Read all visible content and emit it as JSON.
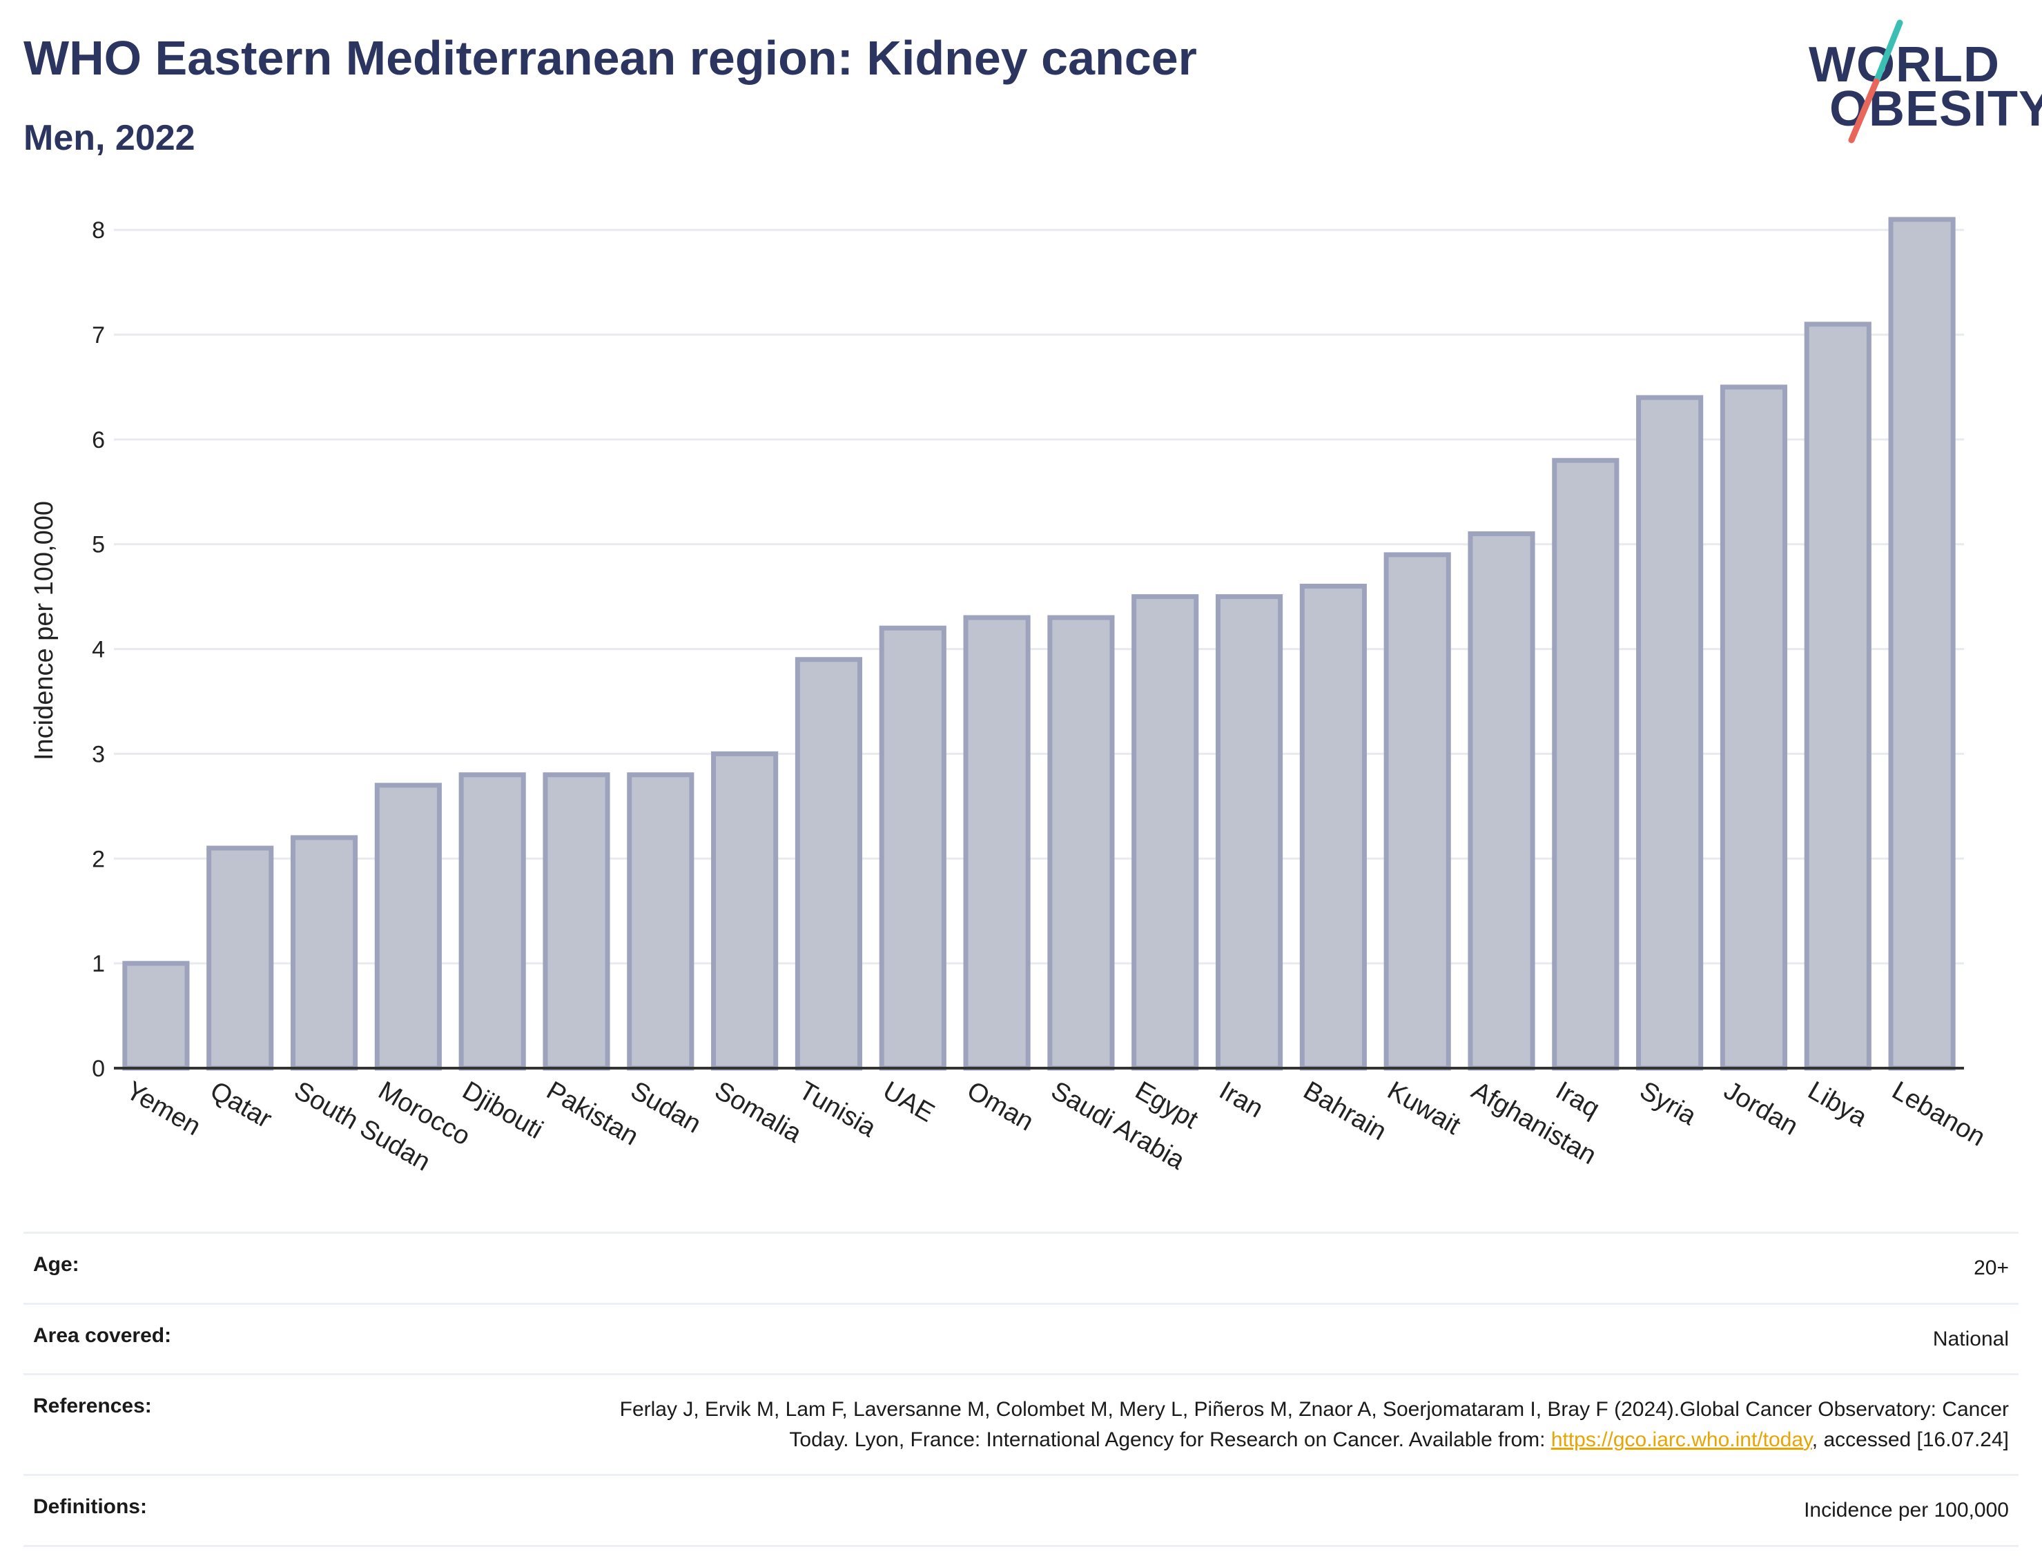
{
  "header": {
    "title": "WHO Eastern Mediterranean region: Kidney cancer",
    "subtitle": "Men, 2022"
  },
  "logo": {
    "line1": "WORLD",
    "line2": "OBESITY",
    "colors": {
      "text": "#2c3560",
      "slash_top": "#3bbfb4",
      "slash_bottom": "#e8675a"
    }
  },
  "chart_data": {
    "type": "bar",
    "title": "",
    "xlabel": "",
    "ylabel": "Incidence per 100,000",
    "ylim": [
      0,
      8.35
    ],
    "yticks": [
      0,
      1,
      2,
      3,
      4,
      5,
      6,
      7,
      8
    ],
    "grid": true,
    "categories": [
      "Yemen",
      "Qatar",
      "South Sudan",
      "Morocco",
      "Djibouti",
      "Pakistan",
      "Sudan",
      "Somalia",
      "Tunisia",
      "UAE",
      "Oman",
      "Saudi Arabia",
      "Egypt",
      "Iran",
      "Bahrain",
      "Kuwait",
      "Afghanistan",
      "Iraq",
      "Syria",
      "Jordan",
      "Libya",
      "Lebanon"
    ],
    "values": [
      1.0,
      2.1,
      2.2,
      2.7,
      2.8,
      2.8,
      2.8,
      3.0,
      3.9,
      4.2,
      4.3,
      4.3,
      4.5,
      4.5,
      4.6,
      4.9,
      5.1,
      5.8,
      6.4,
      6.5,
      7.1,
      8.1
    ],
    "colors": {
      "bar_fill": "#bfc3d0",
      "bar_stroke": "#9ea3bd",
      "grid": "#e8eaef",
      "axis": "#333333"
    }
  },
  "table": {
    "rows": [
      {
        "label": "Age:",
        "value": "20+"
      },
      {
        "label": "Area covered:",
        "value": "National"
      },
      {
        "label": "References:",
        "value_before": "Ferlay J, Ervik M, Lam F, Laversanne M, Colombet M, Mery L, Piñeros M, Znaor A, Soerjomataram I, Bray F (2024).Global Cancer Observatory: Cancer Today. Lyon, France: International Agency for Research on Cancer. Available from: ",
        "link": "https://gco.iarc.who.int/today",
        "value_after": ", accessed [16.07.24]"
      },
      {
        "label": "Definitions:",
        "value": "Incidence per 100,000"
      }
    ]
  }
}
